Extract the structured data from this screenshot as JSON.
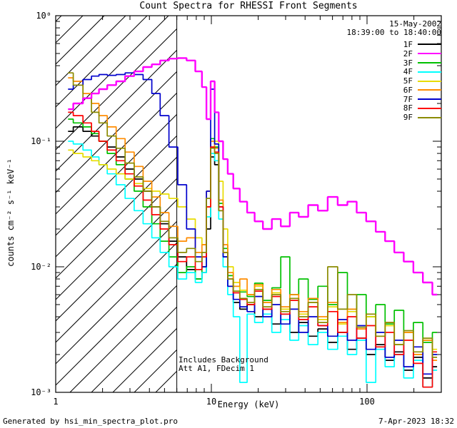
{
  "title": "Count Spectra for RHESSI Front Segments",
  "annotations": {
    "date": "15-May-2002",
    "time_range": "18:39:00 to 18:40:00",
    "background_note": "Includes Background",
    "attenuator_note": "Att A1, FDecim 1"
  },
  "footer": {
    "left": "Generated by hsi_min_spectra_plot.pro",
    "right": "7-Apr-2023 18:32"
  },
  "chart_data": {
    "type": "line",
    "title": "Count Spectra for RHESSI Front Segments",
    "xlabel": "Energy (keV)",
    "ylabel": "counts cm⁻² s⁻¹ keV⁻¹",
    "xscale": "log",
    "yscale": "log",
    "xlim": [
      1,
      300
    ],
    "ylim": [
      0.001,
      1
    ],
    "grid": false,
    "legend_position": "top-right",
    "x_ticks": [
      {
        "v": 1,
        "label": "1"
      },
      {
        "v": 10,
        "label": "10"
      },
      {
        "v": 100,
        "label": "100"
      }
    ],
    "y_ticks": [
      {
        "v": 1,
        "label": "10⁰"
      },
      {
        "v": 0.1,
        "label": "10⁻¹"
      },
      {
        "v": 0.01,
        "label": "10⁻²"
      },
      {
        "v": 0.001,
        "label": "10⁻³"
      }
    ],
    "hatched_region": {
      "x_start": 1,
      "x_end": 6
    },
    "vline_x": 6,
    "energies_keV": [
      1.2,
      1.4,
      1.6,
      1.8,
      2.0,
      2.3,
      2.6,
      3.0,
      3.4,
      3.9,
      4.4,
      5.0,
      5.7,
      6.5,
      7.4,
      8.4,
      9.0,
      9.6,
      10.2,
      10.8,
      11.5,
      12.3,
      13.2,
      14.5,
      16,
      18,
      20,
      23,
      26,
      30,
      34,
      39,
      45,
      52,
      60,
      70,
      80,
      92,
      106,
      122,
      140,
      160,
      185,
      213,
      245,
      282
    ],
    "series": [
      {
        "name": "1F",
        "color": "#000000",
        "values": [
          0.12,
          0.13,
          0.12,
          0.11,
          0.1,
          0.09,
          0.075,
          0.06,
          0.05,
          0.04,
          0.03,
          0.022,
          0.016,
          0.012,
          0.0095,
          0.008,
          0.009,
          0.02,
          0.075,
          0.065,
          0.028,
          0.012,
          0.007,
          0.0052,
          0.0046,
          0.005,
          0.004,
          0.0046,
          0.0035,
          0.0042,
          0.003,
          0.0036,
          0.0028,
          0.0032,
          0.0025,
          0.003,
          0.0022,
          0.0027,
          0.002,
          0.0024,
          0.0018,
          0.0021,
          0.0015,
          0.0019,
          0.0013,
          0.0016
        ]
      },
      {
        "name": "2F",
        "color": "#ff00ff",
        "values": [
          0.18,
          0.2,
          0.22,
          0.24,
          0.26,
          0.28,
          0.3,
          0.33,
          0.36,
          0.39,
          0.41,
          0.44,
          0.455,
          0.46,
          0.44,
          0.36,
          0.27,
          0.15,
          0.3,
          0.17,
          0.1,
          0.072,
          0.055,
          0.042,
          0.033,
          0.027,
          0.023,
          0.02,
          0.024,
          0.021,
          0.027,
          0.025,
          0.031,
          0.028,
          0.036,
          0.031,
          0.033,
          0.027,
          0.023,
          0.019,
          0.016,
          0.013,
          0.011,
          0.009,
          0.0075,
          0.006
        ]
      },
      {
        "name": "3F",
        "color": "#00c000",
        "values": [
          0.15,
          0.14,
          0.13,
          0.115,
          0.1,
          0.08,
          0.065,
          0.05,
          0.04,
          0.03,
          0.022,
          0.016,
          0.012,
          0.009,
          0.01,
          0.008,
          0.01,
          0.035,
          0.105,
          0.09,
          0.032,
          0.014,
          0.0085,
          0.007,
          0.0063,
          0.0058,
          0.0074,
          0.0054,
          0.0068,
          0.012,
          0.006,
          0.008,
          0.0055,
          0.007,
          0.005,
          0.009,
          0.0046,
          0.006,
          0.004,
          0.005,
          0.0035,
          0.0045,
          0.003,
          0.0036,
          0.0025,
          0.003
        ]
      },
      {
        "name": "4F",
        "color": "#00ffff",
        "values": [
          0.1,
          0.095,
          0.085,
          0.075,
          0.065,
          0.055,
          0.045,
          0.035,
          0.028,
          0.022,
          0.017,
          0.013,
          0.01,
          0.008,
          0.009,
          0.0075,
          0.009,
          0.025,
          0.08,
          0.07,
          0.024,
          0.01,
          0.006,
          0.004,
          0.0012,
          0.0042,
          0.0036,
          0.0042,
          0.003,
          0.0038,
          0.0026,
          0.0034,
          0.0024,
          0.003,
          0.0022,
          0.0028,
          0.002,
          0.0026,
          0.0012,
          0.0022,
          0.0016,
          0.002,
          0.0013,
          0.0018,
          0.0011,
          0.0015
        ]
      },
      {
        "name": "5F",
        "color": "#e8dc00",
        "values": [
          0.085,
          0.08,
          0.075,
          0.07,
          0.065,
          0.06,
          0.055,
          0.05,
          0.046,
          0.042,
          0.04,
          0.038,
          0.035,
          0.03,
          0.024,
          0.017,
          0.015,
          0.03,
          0.09,
          0.1,
          0.048,
          0.02,
          0.01,
          0.0075,
          0.0065,
          0.006,
          0.007,
          0.0052,
          0.0062,
          0.0046,
          0.0056,
          0.0042,
          0.0052,
          0.0038,
          0.0048,
          0.0035,
          0.0044,
          0.0032,
          0.004,
          0.0028,
          0.0034,
          0.0024,
          0.003,
          0.002,
          0.0026,
          0.0022
        ]
      },
      {
        "name": "6F",
        "color": "#ff8c00",
        "values": [
          0.32,
          0.3,
          0.24,
          0.2,
          0.16,
          0.13,
          0.105,
          0.082,
          0.063,
          0.048,
          0.036,
          0.027,
          0.021,
          0.016,
          0.017,
          0.013,
          0.015,
          0.04,
          0.1,
          0.088,
          0.034,
          0.015,
          0.009,
          0.007,
          0.008,
          0.006,
          0.0072,
          0.0052,
          0.0066,
          0.0048,
          0.006,
          0.0044,
          0.0056,
          0.004,
          0.0052,
          0.0036,
          0.0046,
          0.0032,
          0.0042,
          0.0028,
          0.0036,
          0.0024,
          0.003,
          0.002,
          0.0026,
          0.0018
        ]
      },
      {
        "name": "7F",
        "color": "#0000cd",
        "values": [
          0.26,
          0.28,
          0.31,
          0.33,
          0.34,
          0.335,
          0.34,
          0.35,
          0.34,
          0.31,
          0.24,
          0.16,
          0.09,
          0.045,
          0.02,
          0.012,
          0.01,
          0.04,
          0.26,
          0.095,
          0.03,
          0.012,
          0.007,
          0.0055,
          0.0048,
          0.0044,
          0.0058,
          0.004,
          0.005,
          0.0035,
          0.0046,
          0.003,
          0.004,
          0.0034,
          0.0028,
          0.0038,
          0.0026,
          0.0034,
          0.0022,
          0.003,
          0.0019,
          0.0026,
          0.0016,
          0.0023,
          0.0014,
          0.002
        ]
      },
      {
        "name": "8F",
        "color": "#ff0000",
        "values": [
          0.17,
          0.16,
          0.14,
          0.12,
          0.1,
          0.085,
          0.07,
          0.055,
          0.044,
          0.034,
          0.026,
          0.02,
          0.015,
          0.011,
          0.012,
          0.0095,
          0.012,
          0.03,
          0.09,
          0.082,
          0.03,
          0.013,
          0.008,
          0.0062,
          0.0055,
          0.005,
          0.0064,
          0.0046,
          0.0058,
          0.0042,
          0.0054,
          0.0038,
          0.0048,
          0.0034,
          0.0044,
          0.003,
          0.004,
          0.0027,
          0.0034,
          0.0023,
          0.003,
          0.002,
          0.0026,
          0.0017,
          0.0011,
          0.0021
        ]
      },
      {
        "name": "9F",
        "color": "#8b8b00",
        "values": [
          0.35,
          0.28,
          0.22,
          0.17,
          0.14,
          0.11,
          0.088,
          0.067,
          0.052,
          0.04,
          0.03,
          0.023,
          0.017,
          0.013,
          0.014,
          0.011,
          0.013,
          0.035,
          0.088,
          0.08,
          0.028,
          0.013,
          0.008,
          0.0064,
          0.0056,
          0.0052,
          0.0066,
          0.0048,
          0.006,
          0.0044,
          0.0056,
          0.004,
          0.0052,
          0.0036,
          0.01,
          0.0046,
          0.006,
          0.0033,
          0.0042,
          0.0028,
          0.0036,
          0.0024,
          0.0031,
          0.0021,
          0.0027,
          0.0019
        ]
      }
    ]
  }
}
